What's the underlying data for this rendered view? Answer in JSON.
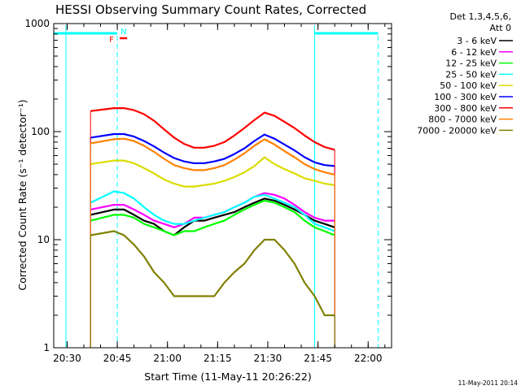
{
  "chart_data": {
    "type": "line",
    "title": "HESSI Observing Summary Count Rates, Corrected",
    "xlabel": "Start Time (11-May-11 20:26:22)",
    "ylabel": "Corrected Count Rate (s⁻¹ detector⁻¹)",
    "yscale": "log",
    "ylim": [
      1,
      1000
    ],
    "xlim": [
      "20:26",
      "22:07"
    ],
    "x_ticks": [
      "20:30",
      "20:45",
      "21:00",
      "21:15",
      "21:30",
      "21:45",
      "22:00"
    ],
    "y_ticks": [
      "1",
      "10",
      "100",
      "1000"
    ],
    "legend_header": [
      "Det 1,3,4,5,6,",
      "Att 0"
    ],
    "legend_position": "right, outside plot",
    "x": [
      "20:41",
      "20:44",
      "20:47",
      "20:50",
      "20:53",
      "20:56",
      "20:59",
      "21:02",
      "21:05",
      "21:08",
      "21:11",
      "21:14",
      "21:17",
      "21:20",
      "21:23",
      "21:26",
      "21:29",
      "21:32",
      "21:35",
      "21:38",
      "21:41",
      "21:44",
      "21:47",
      "21:50"
    ],
    "series": [
      {
        "name": "3 - 6 keV",
        "color": "#000000",
        "values": [
          17,
          19,
          19,
          17,
          15,
          14,
          12,
          11,
          13,
          15,
          15,
          16,
          17,
          18,
          20,
          22,
          24,
          23,
          21,
          19,
          17,
          15,
          14,
          13
        ]
      },
      {
        "name": "6 - 12 keV",
        "color": "#ff00ff",
        "values": [
          19,
          21,
          21,
          19,
          17,
          15,
          14,
          13,
          14,
          16,
          16,
          17,
          18,
          20,
          22,
          25,
          27,
          26,
          24,
          21,
          18,
          16,
          15,
          15
        ]
      },
      {
        "name": "12 - 25 keV",
        "color": "#00ff00",
        "values": [
          15,
          17,
          17,
          16,
          14,
          13,
          12,
          11,
          12,
          12,
          13,
          14,
          15,
          17,
          19,
          21,
          23,
          22,
          20,
          18,
          15,
          13,
          12,
          11
        ]
      },
      {
        "name": "25 - 50 keV",
        "color": "#00ffff",
        "values": [
          22,
          28,
          27,
          24,
          20,
          17,
          15,
          14,
          14,
          15,
          16,
          17,
          18,
          20,
          22,
          25,
          26,
          24,
          22,
          20,
          17,
          14,
          13,
          12
        ]
      },
      {
        "name": "50 - 100 keV",
        "color": "#dcdc00",
        "values": [
          50,
          54,
          54,
          51,
          46,
          41,
          36,
          33,
          31,
          31,
          32,
          33,
          35,
          38,
          42,
          48,
          58,
          50,
          45,
          41,
          37,
          35,
          33,
          32
        ]
      },
      {
        "name": "100 - 300 keV",
        "color": "#0000ff",
        "values": [
          88,
          95,
          95,
          90,
          82,
          73,
          64,
          57,
          53,
          51,
          51,
          53,
          56,
          62,
          70,
          82,
          94,
          86,
          76,
          67,
          58,
          52,
          49,
          48
        ]
      },
      {
        "name": "300 - 800 keV",
        "color": "#ff0000",
        "values": [
          155,
          165,
          165,
          158,
          145,
          126,
          105,
          88,
          77,
          71,
          71,
          74,
          80,
          92,
          108,
          128,
          150,
          140,
          123,
          108,
          92,
          80,
          72,
          68
        ]
      },
      {
        "name": "800 - 7000 keV",
        "color": "#ff8000",
        "values": [
          78,
          85,
          86,
          82,
          74,
          65,
          56,
          49,
          46,
          44,
          44,
          46,
          49,
          55,
          63,
          74,
          85,
          76,
          66,
          58,
          50,
          45,
          42,
          40
        ]
      },
      {
        "name": "7000 - 20000 keV",
        "color": "#808000",
        "values": [
          11,
          12,
          11,
          9,
          7,
          5,
          4,
          3,
          3,
          3,
          3,
          3,
          4,
          5,
          6,
          8,
          10,
          10,
          8,
          6,
          4,
          3,
          2,
          2
        ]
      }
    ],
    "bar_annotations": [
      {
        "label": "F",
        "color": "#ff0000"
      },
      {
        "label": "N",
        "color": "#00ffff"
      }
    ],
    "timestamp": "11-May-2011 20:14"
  }
}
